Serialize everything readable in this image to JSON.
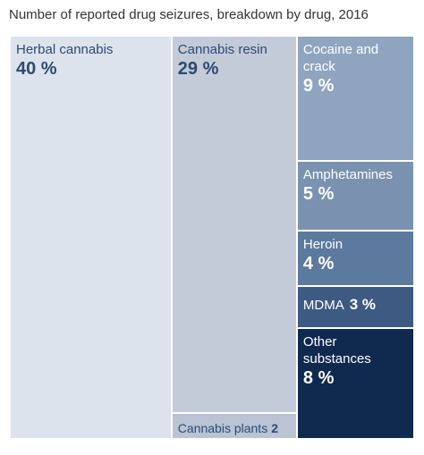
{
  "chart_data": {
    "type": "treemap",
    "title": "Number of reported drug seizures, breakdown by drug, 2016",
    "categories": [
      "Herbal cannabis",
      "Cannabis resin",
      "Cannabis plants",
      "Cocaine and crack",
      "Amphetamines",
      "Heroin",
      "MDMA",
      "Other substances"
    ],
    "values": [
      40,
      29,
      2,
      9,
      5,
      4,
      3,
      8
    ],
    "value_labels": [
      "40 %",
      "29 %",
      "2 %",
      "9 %",
      "5 %",
      "4 %",
      "3 %",
      "8 %"
    ],
    "colors": [
      "#dde3ec",
      "#c3cbd9",
      "#bac4d5",
      "#8fa5bf",
      "#7a92b0",
      "#5c7a9e",
      "#3c5a82",
      "#10294f"
    ]
  }
}
